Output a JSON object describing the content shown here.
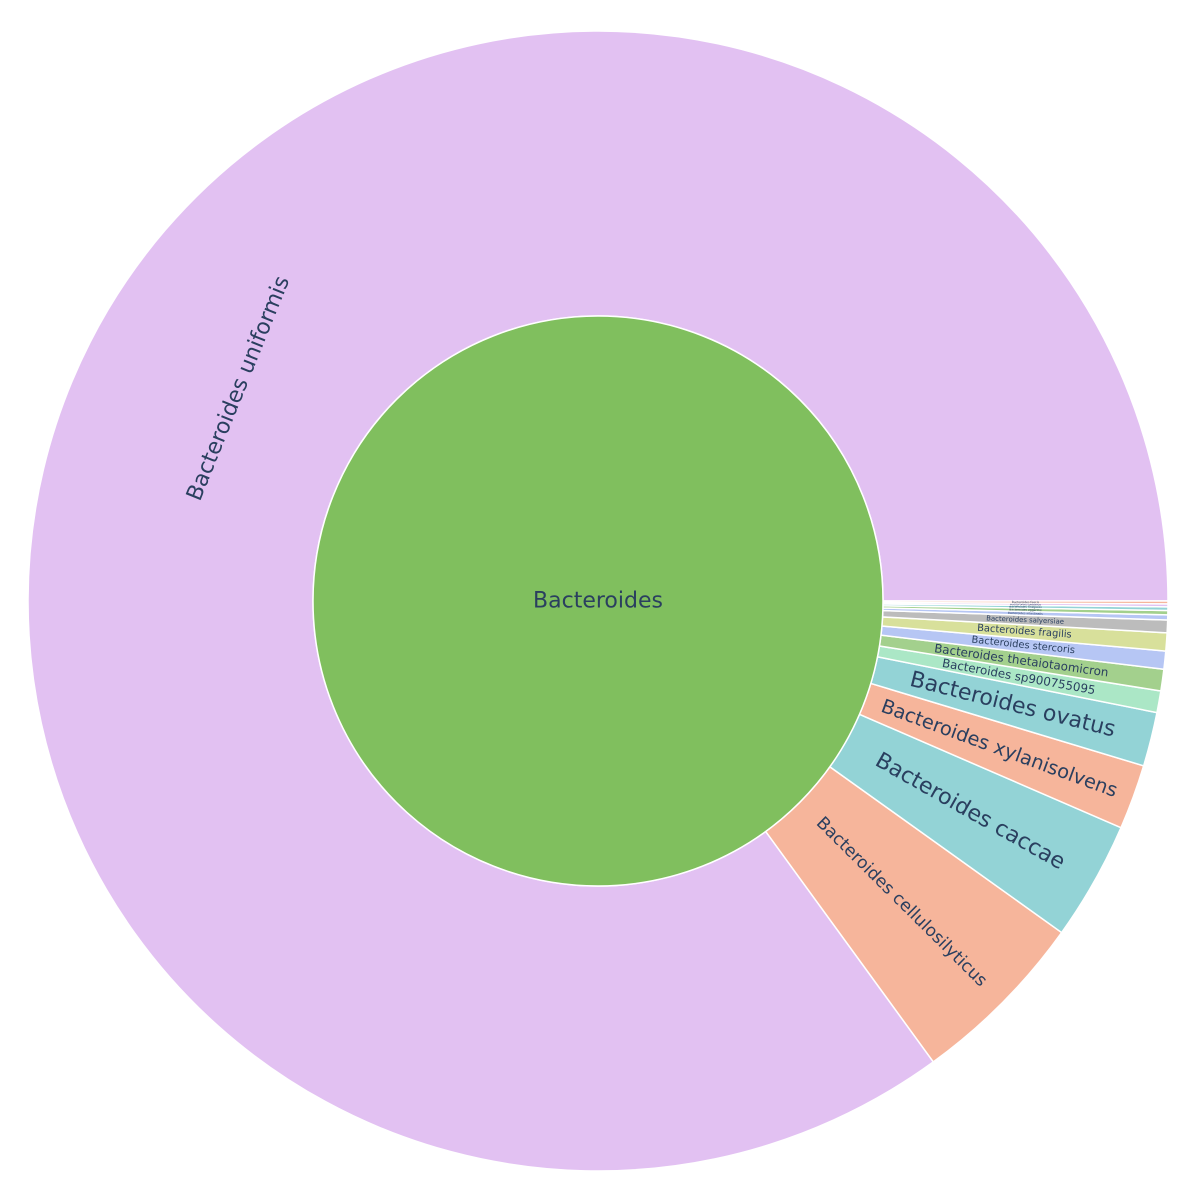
{
  "chart_data": {
    "type": "sunburst",
    "root": {
      "label": "Bacteroides",
      "color": "#80bf5e"
    },
    "children": [
      {
        "label": "Bacteroides uniformis",
        "value": 83.2,
        "color": "#e2c1f2"
      },
      {
        "label": "Bacteroides cellulosilyticus",
        "value": 5.0,
        "color": "#f6b59b"
      },
      {
        "label": "Bacteroides caccae",
        "value": 3.3,
        "color": "#93d3d6"
      },
      {
        "label": "Bacteroides xylanisolvens",
        "value": 1.8,
        "color": "#f6b59b"
      },
      {
        "label": "Bacteroides ovatus",
        "value": 1.5,
        "color": "#93d3d6"
      },
      {
        "label": "Bacteroides sp900755095",
        "value": 0.6,
        "color": "#abe7c6"
      },
      {
        "label": "Bacteroides thetaiotaomicron",
        "value": 0.6,
        "color": "#a3d08d"
      },
      {
        "label": "Bacteroides stercoris",
        "value": 0.5,
        "color": "#b6c6f4"
      },
      {
        "label": "Bacteroides fragilis",
        "value": 0.5,
        "color": "#d8e09b"
      },
      {
        "label": "Bacteroides salyersiae",
        "value": 0.35,
        "color": "#bcbcbc"
      },
      {
        "label": "Bacteroides intestinalis",
        "value": 0.14,
        "color": "#b6c6f4"
      },
      {
        "label": "Bacteroides eggerthii",
        "value": 0.12,
        "color": "#a3d08d"
      },
      {
        "label": "Bacteroides finegoldii",
        "value": 0.1,
        "color": "#93d3d6"
      },
      {
        "label": "Bacteroides plebeius",
        "value": 0.08,
        "color": "#e2c1f2"
      },
      {
        "label": "Bacteroides faecis",
        "value": 0.08,
        "color": "#f6b59b"
      }
    ]
  }
}
